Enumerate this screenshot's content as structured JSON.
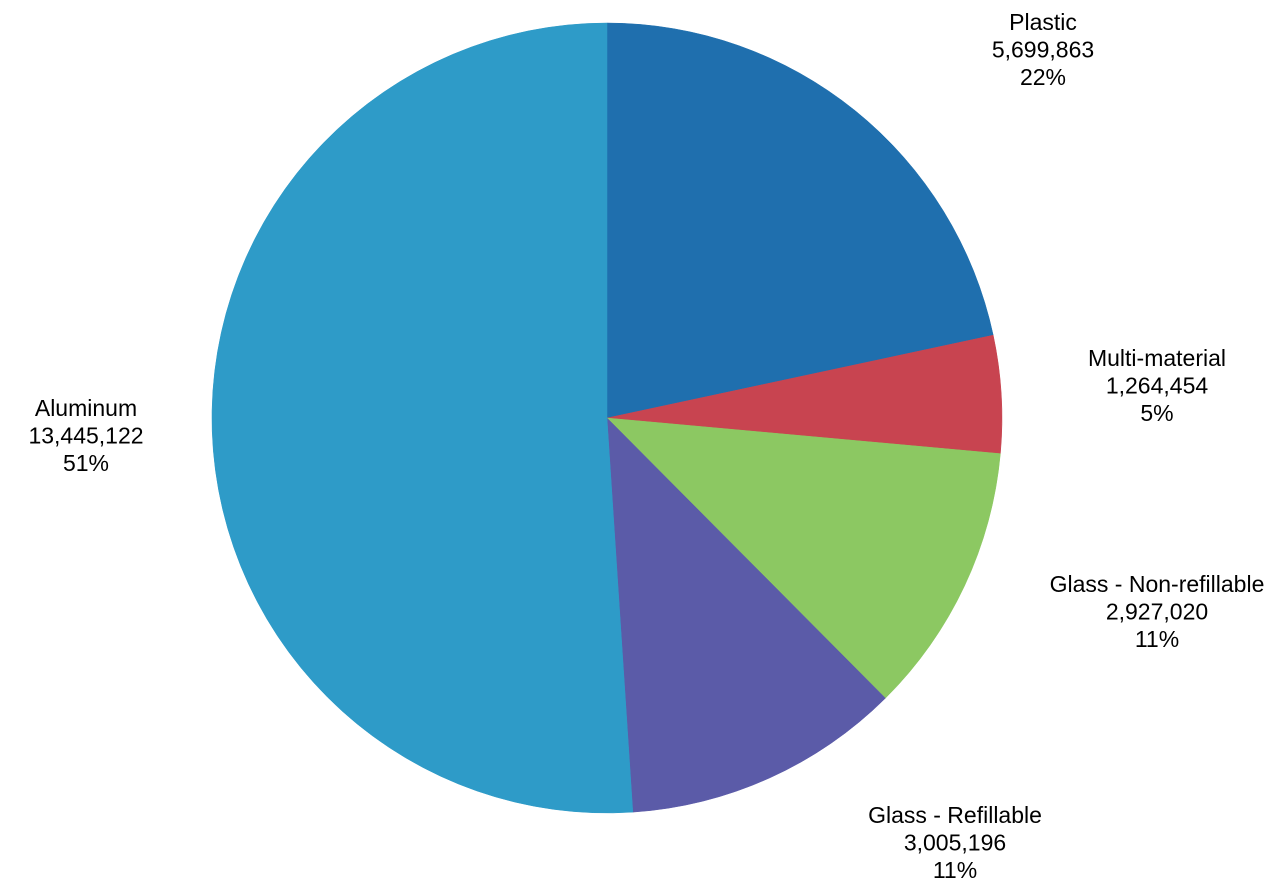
{
  "chart_data": {
    "type": "pie",
    "title": "",
    "slices": [
      {
        "label": "Plastic",
        "value": 5699863,
        "value_text": "5,699,863",
        "percent_text": "22%",
        "color": "#1f6fae"
      },
      {
        "label": "Multi-material",
        "value": 1264454,
        "value_text": "1,264,454",
        "percent_text": "5%",
        "color": "#c84450"
      },
      {
        "label": "Glass - Non-refillable",
        "value": 2927020,
        "value_text": "2,927,020",
        "percent_text": "11%",
        "color": "#8cc862"
      },
      {
        "label": "Glass - Refillable",
        "value": 3005196,
        "value_text": "3,005,196",
        "percent_text": "11%",
        "color": "#5b5ba8"
      },
      {
        "label": "Aluminum",
        "value": 13445122,
        "value_text": "13,445,122",
        "percent_text": "51%",
        "color": "#2e9bc8"
      }
    ],
    "start_angle": "12 o'clock",
    "direction": "clockwise",
    "legend": "none"
  }
}
